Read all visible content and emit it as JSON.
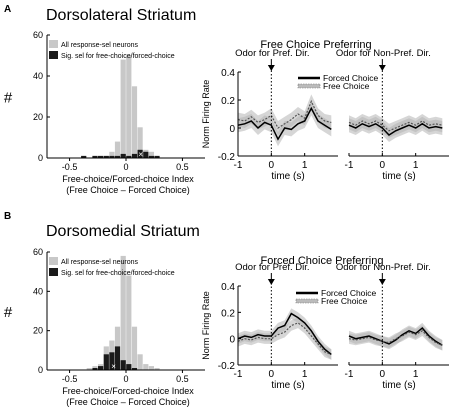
{
  "chart_data": [
    {
      "panel": "A",
      "section_title": "Dorsolateral Striatum",
      "histogram": {
        "type": "bar",
        "ylabel": "#",
        "xlabel": "Free-choice/Forced-choice Index",
        "xlabel2": "(Free Choice – Forced Choice)",
        "xlim": [
          -0.7,
          0.7
        ],
        "ylim": [
          0,
          60
        ],
        "xticks": [
          -0.5,
          0,
          0.5
        ],
        "xtick_labels": [
          "-0.5",
          "0",
          "0.5"
        ],
        "yticks": [
          0,
          20,
          40,
          60
        ],
        "ytick_labels": [
          "0",
          "20",
          "40",
          "60"
        ],
        "bin_centers": [
          -0.375,
          -0.325,
          -0.275,
          -0.225,
          -0.175,
          -0.125,
          -0.075,
          -0.025,
          0.025,
          0.075,
          0.125,
          0.175,
          0.225,
          0.275
        ],
        "series": [
          {
            "name": "All response-sel neurons",
            "color": "#c8c8c8",
            "values": [
              1,
              0,
              1,
              1,
              1,
              3,
              8,
              48,
              50,
              35,
              15,
              4,
              3,
              1
            ]
          },
          {
            "name": "Sig. sel for free-choice/forced-choice",
            "color": "#1a1a1a",
            "values": [
              1,
              0,
              1,
              1,
              1,
              1,
              1,
              2,
              1,
              2,
              4,
              3,
              1,
              1
            ]
          }
        ],
        "marker": {
          "symbol": "×",
          "x": 0.13
        }
      },
      "psth_title": "Free Choice Preferring",
      "psth_left": {
        "type": "line",
        "annotation": "Odor for Pref. Dir.",
        "ylabel": "Norm Firing Rate",
        "xlabel": "time (s)",
        "xlim": [
          -1,
          2
        ],
        "ylim": [
          -0.2,
          0.4
        ],
        "xticks": [
          -1,
          0,
          1
        ],
        "yticks": [
          -0.2,
          0,
          0.2,
          0.4
        ],
        "xtick_labels": [
          "-1",
          "0",
          "1"
        ],
        "ytick_labels": [
          "-0.2",
          "0",
          "0.2",
          "0.4"
        ],
        "x": [
          -1.0,
          -0.8,
          -0.6,
          -0.4,
          -0.2,
          0.0,
          0.2,
          0.4,
          0.6,
          0.8,
          1.0,
          1.2,
          1.4,
          1.6,
          1.8
        ],
        "series": [
          {
            "name": "Forced Choice",
            "values": [
              0.02,
              0.03,
              0.05,
              0.0,
              0.04,
              0.02,
              -0.08,
              0.0,
              -0.01,
              0.03,
              0.05,
              0.14,
              0.05,
              0.02,
              -0.01
            ],
            "err": 0.05
          },
          {
            "name": "Free Choice",
            "values": [
              0.06,
              0.05,
              0.08,
              0.04,
              0.06,
              0.09,
              0.0,
              0.03,
              0.06,
              0.1,
              0.07,
              0.19,
              0.09,
              0.05,
              0.04
            ],
            "err": 0.05
          }
        ],
        "legend": [
          "Forced Choice",
          "Free Choice"
        ]
      },
      "psth_right": {
        "type": "line",
        "annotation": "Odor for Non-Pref. Dir.",
        "xlabel": "time (s)",
        "xlim": [
          -1,
          2
        ],
        "ylim": [
          -0.2,
          0.4
        ],
        "xticks": [
          -1,
          0,
          1
        ],
        "xtick_labels": [
          "-1",
          "0",
          "1"
        ],
        "x": [
          -1.0,
          -0.8,
          -0.6,
          -0.4,
          -0.2,
          0.0,
          0.2,
          0.4,
          0.6,
          0.8,
          1.0,
          1.2,
          1.4,
          1.6,
          1.8
        ],
        "series": [
          {
            "name": "Forced Choice",
            "values": [
              0.02,
              0.0,
              0.03,
              0.01,
              0.03,
              0.0,
              -0.05,
              -0.02,
              0.0,
              0.02,
              0.0,
              0.03,
              0.0,
              0.01,
              0.0
            ],
            "err": 0.05
          },
          {
            "name": "Free Choice",
            "values": [
              0.04,
              0.02,
              0.05,
              0.03,
              0.05,
              0.02,
              -0.02,
              0.0,
              0.02,
              0.04,
              0.02,
              0.05,
              0.02,
              0.03,
              0.02
            ],
            "err": 0.05
          }
        ]
      }
    },
    {
      "panel": "B",
      "section_title": "Dorsomedial Striatum",
      "histogram": {
        "type": "bar",
        "ylabel": "#",
        "xlabel": "Free-choice/Forced-choice Index",
        "xlabel2": "(Free Choice – Forced Choice)",
        "xlim": [
          -0.7,
          0.7
        ],
        "ylim": [
          0,
          60
        ],
        "xticks": [
          -0.5,
          0,
          0.5
        ],
        "xtick_labels": [
          "-0.5",
          "0",
          "0.5"
        ],
        "yticks": [
          0,
          20,
          40,
          60
        ],
        "ytick_labels": [
          "0",
          "20",
          "40",
          "60"
        ],
        "bin_centers": [
          -0.375,
          -0.325,
          -0.275,
          -0.225,
          -0.175,
          -0.125,
          -0.075,
          -0.025,
          0.025,
          0.075,
          0.125,
          0.175,
          0.225,
          0.275
        ],
        "series": [
          {
            "name": "All response-sel neurons",
            "color": "#c8c8c8",
            "values": [
              0,
              1,
              2,
              3,
              12,
              15,
              22,
              58,
              48,
              22,
              8,
              3,
              2,
              1
            ]
          },
          {
            "name": "Sig. sel for free-choice/forced-choice",
            "color": "#1a1a1a",
            "values": [
              0,
              0,
              1,
              2,
              8,
              9,
              12,
              5,
              3,
              1,
              0,
              0,
              0,
              0
            ]
          }
        ],
        "marker": {
          "symbol": "×",
          "x": -0.11
        }
      },
      "psth_title": "Forced Choice Preferring",
      "psth_left": {
        "type": "line",
        "annotation": "Odor for Pref. Dir.",
        "ylabel": "Norm Firing Rate",
        "xlabel": "time (s)",
        "xlim": [
          -1,
          2
        ],
        "ylim": [
          -0.2,
          0.4
        ],
        "xticks": [
          -1,
          0,
          1
        ],
        "yticks": [
          -0.2,
          0,
          0.2,
          0.4
        ],
        "xtick_labels": [
          "-1",
          "0",
          "1"
        ],
        "ytick_labels": [
          "-0.2",
          "0",
          "0.2",
          "0.4"
        ],
        "x": [
          -1.0,
          -0.8,
          -0.6,
          -0.4,
          -0.2,
          0.0,
          0.2,
          0.4,
          0.6,
          0.8,
          1.0,
          1.2,
          1.4,
          1.6,
          1.8
        ],
        "series": [
          {
            "name": "Forced Choice",
            "values": [
              0.0,
              0.02,
              0.01,
              0.03,
              0.02,
              0.02,
              0.08,
              0.1,
              0.19,
              0.16,
              0.12,
              0.06,
              -0.02,
              -0.08,
              -0.12
            ],
            "err": 0.04
          },
          {
            "name": "Free Choice",
            "values": [
              -0.02,
              0.0,
              -0.01,
              0.01,
              0.0,
              0.0,
              0.03,
              0.05,
              0.1,
              0.12,
              0.08,
              0.02,
              -0.04,
              -0.1,
              -0.12
            ],
            "err": 0.04
          }
        ],
        "legend": [
          "Forced Choice",
          "Free Choice"
        ]
      },
      "psth_right": {
        "type": "line",
        "annotation": "Odor for Non-Pref. Dir.",
        "xlabel": "time (s)",
        "xlim": [
          -1,
          2
        ],
        "ylim": [
          -0.2,
          0.4
        ],
        "xticks": [
          -1,
          0,
          1
        ],
        "xtick_labels": [
          "-1",
          "0",
          "1"
        ],
        "x": [
          -1.0,
          -0.8,
          -0.6,
          -0.4,
          -0.2,
          0.0,
          0.2,
          0.4,
          0.6,
          0.8,
          1.0,
          1.2,
          1.4,
          1.6,
          1.8
        ],
        "series": [
          {
            "name": "Forced Choice",
            "values": [
              0.02,
              0.0,
              0.01,
              0.02,
              0.0,
              -0.02,
              -0.04,
              -0.01,
              0.03,
              0.06,
              0.04,
              0.08,
              0.02,
              -0.02,
              -0.05
            ],
            "err": 0.04
          },
          {
            "name": "Free Choice",
            "values": [
              0.0,
              -0.01,
              0.0,
              0.01,
              -0.01,
              -0.02,
              -0.03,
              0.0,
              0.02,
              0.05,
              0.03,
              0.06,
              0.01,
              -0.03,
              -0.05
            ],
            "err": 0.04
          }
        ]
      }
    }
  ]
}
